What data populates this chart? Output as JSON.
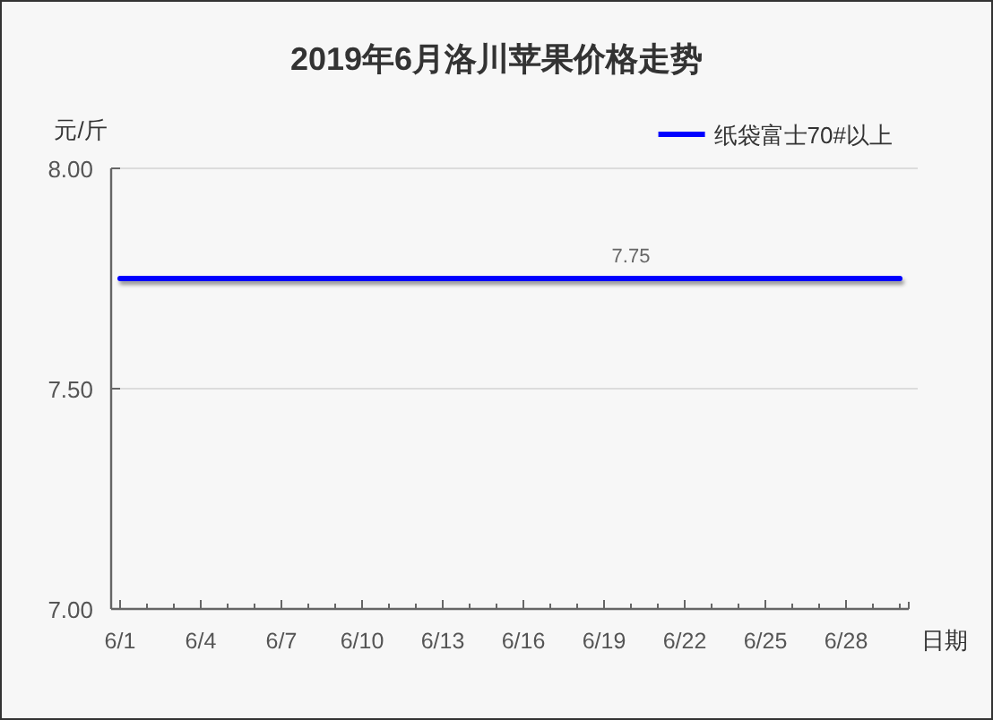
{
  "chart_data": {
    "type": "line",
    "title": "2019年6月洛川苹果价格走势",
    "ylabel": "元/斤",
    "xlabel": "日期",
    "categories": [
      "6/1",
      null,
      null,
      "6/4",
      null,
      null,
      "6/7",
      null,
      null,
      "6/10",
      null,
      null,
      "6/13",
      null,
      null,
      "6/16",
      null,
      null,
      "6/19",
      null,
      null,
      "6/22",
      null,
      null,
      "6/25",
      null,
      null,
      "6/28",
      null,
      null
    ],
    "series": [
      {
        "name": "纸袋富士70#以上",
        "color": "#0000ff",
        "values": [
          7.75,
          7.75,
          7.75,
          7.75,
          7.75,
          7.75,
          7.75,
          7.75,
          7.75,
          7.75,
          7.75,
          7.75,
          7.75,
          7.75,
          7.75,
          7.75,
          7.75,
          7.75,
          7.75,
          7.75,
          7.75,
          7.75,
          7.75,
          7.75,
          7.75,
          7.75,
          7.75,
          7.75,
          7.75,
          7.75
        ],
        "value_labels": [
          null,
          null,
          null,
          null,
          null,
          null,
          null,
          null,
          null,
          null,
          null,
          null,
          null,
          null,
          null,
          null,
          null,
          null,
          null,
          "7.75",
          null,
          null,
          null,
          null,
          null,
          null,
          null,
          null,
          null,
          null
        ]
      }
    ],
    "ylim": [
      7,
      8
    ],
    "yticks": [
      {
        "value": 7,
        "label": "7.00"
      },
      {
        "value": 7.5,
        "label": "7.50"
      },
      {
        "value": 8,
        "label": "8.00"
      }
    ],
    "grid": "y",
    "legend": "top right"
  }
}
